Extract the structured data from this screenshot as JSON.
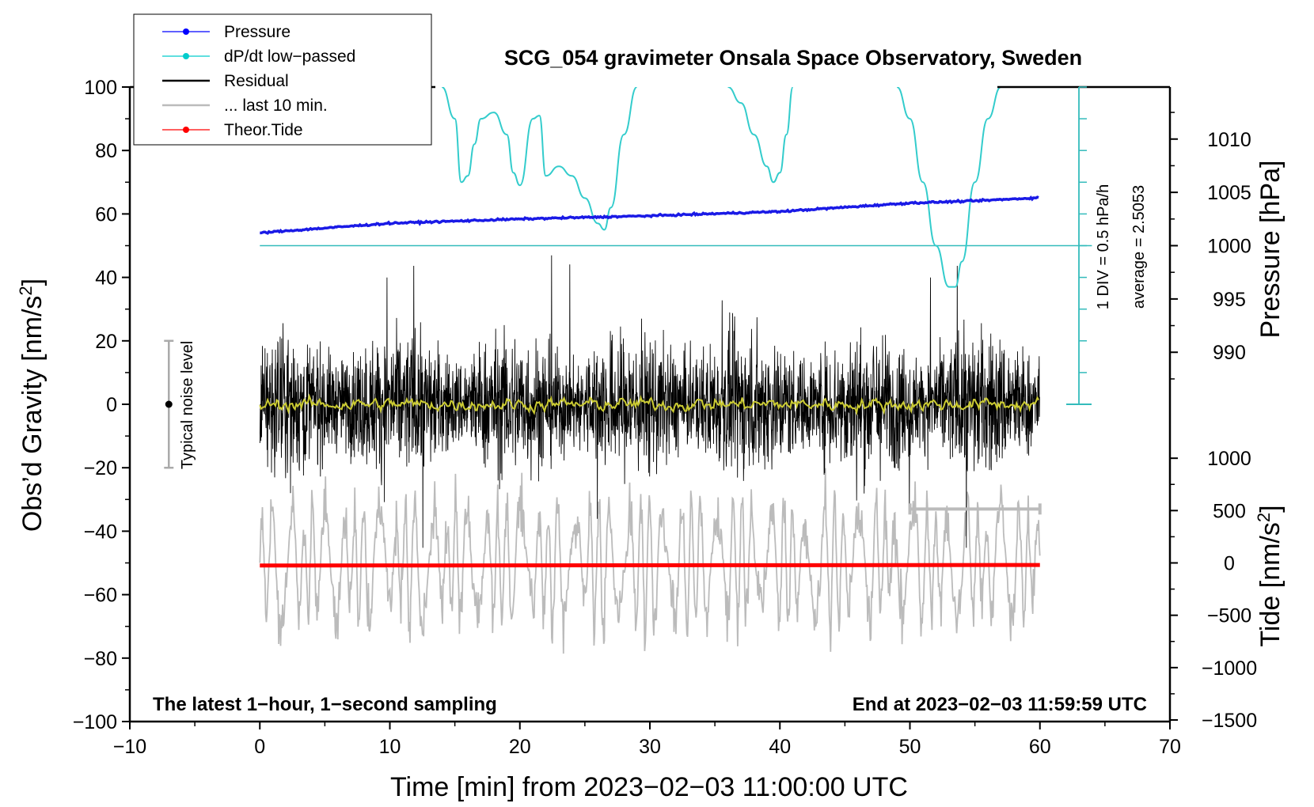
{
  "chart_data": {
    "type": "line",
    "title": "SCG_054 gravimeter Onsala Space Observatory, Sweden",
    "xlabel": "Time [min] from 2023−02−03 11:00:00 UTC",
    "ylabel": "Obs’d Gravity [nm/s",
    "ylabel_sup": "2",
    "ylabel_end": "]",
    "y2label_pressure": "Pressure [hPa]",
    "y2label_tide": "Tide [nm/s",
    "y2label_tide_sup": "2",
    "y2label_tide_end": "]",
    "xlim": [
      -10,
      70
    ],
    "ylim": [
      -100,
      100
    ],
    "xticks": [
      "−10",
      "0",
      "10",
      "20",
      "30",
      "40",
      "50",
      "60",
      "70"
    ],
    "yticks": [
      "−100",
      "−80",
      "−60",
      "−40",
      "−20",
      "0",
      "20",
      "40",
      "60",
      "80",
      "100"
    ],
    "pressure_ticks": [
      "990",
      "995",
      "1000",
      "1005",
      "1010"
    ],
    "tide_ticks": [
      "−1500",
      "−1000",
      "−500",
      "0",
      "500",
      "1000"
    ],
    "pressure_zero_hpa": 1000,
    "pressure_zero_gravity_units": 50,
    "dpdt_div_label": "1 DIV = 0.5 hPa/h",
    "pressure_average_label": "average = 2.5053",
    "noise_label": "Typical noise level",
    "noise_level": {
      "x": -7,
      "center": 0,
      "half_range": 20
    },
    "last_10_min_range": [
      50,
      60
    ],
    "note_left": "The latest 1−hour, 1−second sampling",
    "note_right": "End at 2023−02−03 11:59:59 UTC",
    "legend": [
      {
        "label": "Pressure",
        "color": "#0000ff"
      },
      {
        "label": "dP/dt low−passed",
        "color": "#00cccc"
      },
      {
        "label": "Residual",
        "color": "#000000"
      },
      {
        "label": "... last 10 min.",
        "color": "#bbbbbb"
      },
      {
        "label": "Theor.Tide",
        "color": "#ff0000"
      }
    ],
    "series": [
      {
        "name": "Pressure",
        "units": "hPa",
        "color": "#1a1ae6",
        "x": [
          0,
          10,
          20,
          30,
          40,
          50,
          55,
          60
        ],
        "values": [
          1001.2,
          1002.1,
          1002.5,
          1002.8,
          1003.2,
          1004.0,
          1004.2,
          1004.5
        ]
      },
      {
        "name": "dP/dt low−passed",
        "units": "gravity-axis",
        "color": "#33cccc",
        "x": [
          14,
          15,
          15.5,
          16,
          16.5,
          17,
          18,
          19,
          19.5,
          20,
          21,
          21.5,
          22,
          23,
          24,
          25,
          26,
          26.5,
          27,
          28,
          29,
          36,
          37,
          38,
          39,
          39.5,
          40,
          40.5,
          41,
          49,
          50,
          51,
          52,
          53,
          53.5,
          54,
          55,
          56,
          57
        ],
        "values": [
          100,
          90,
          70,
          72,
          82,
          90,
          92,
          85,
          73,
          69,
          90,
          91,
          72,
          75,
          72,
          65,
          57,
          55,
          62,
          85,
          100,
          100,
          95,
          85,
          75,
          70,
          73,
          85,
          100,
          100,
          90,
          70,
          50,
          37,
          37,
          45,
          70,
          90,
          100
        ]
      },
      {
        "name": "Residual",
        "units": "nm/s2",
        "color": "#000000",
        "x_range": [
          0,
          60
        ],
        "amplitude": 20,
        "peak": 47
      },
      {
        "name": "Residual smoothed",
        "units": "nm/s2",
        "color": "#cccc33",
        "x_range": [
          0,
          60
        ],
        "amplitude": 2
      },
      {
        "name": "... last 10 min.",
        "units": "nm/s2",
        "color": "#bbbbbb",
        "x_range": [
          0,
          60
        ],
        "center": -50,
        "amplitude": 20
      },
      {
        "name": "Theor.Tide",
        "units": "nm/s2",
        "color": "#ff0000",
        "x": [
          0,
          60
        ],
        "values": [
          -25,
          -20
        ]
      }
    ]
  }
}
